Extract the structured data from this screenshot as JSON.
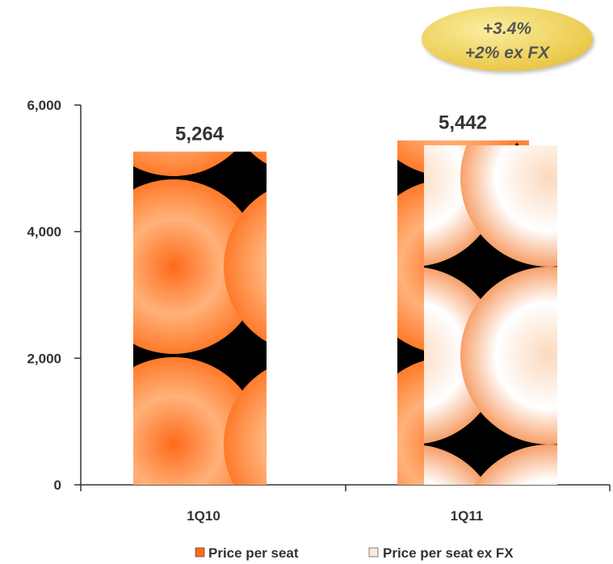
{
  "chart_data": {
    "type": "bar",
    "categories": [
      "1Q10",
      "1Q11"
    ],
    "series": [
      {
        "name": "Price per seat",
        "values": [
          5264,
          null
        ],
        "data_labels": [
          "5,264",
          null
        ]
      },
      {
        "name": "Price per seat ex FX",
        "values": [
          null,
          5364
        ],
        "data_labels": [
          null,
          ""
        ]
      }
    ],
    "extra_values": {
      "1Q11_price_per_seat": 5442,
      "label": "5,442"
    },
    "y_ticks": [
      "0",
      "2,000",
      "4,000",
      "6,000"
    ],
    "ylim": [
      0,
      6000
    ],
    "legend_position": "bottom",
    "annotation": {
      "line1": "+3.4%",
      "line2": "+2% ex FX"
    },
    "colors": {
      "orange": "#ff6a1a",
      "light": "#fde7d6",
      "badge": "#f0d060",
      "axis": "#333333"
    }
  }
}
